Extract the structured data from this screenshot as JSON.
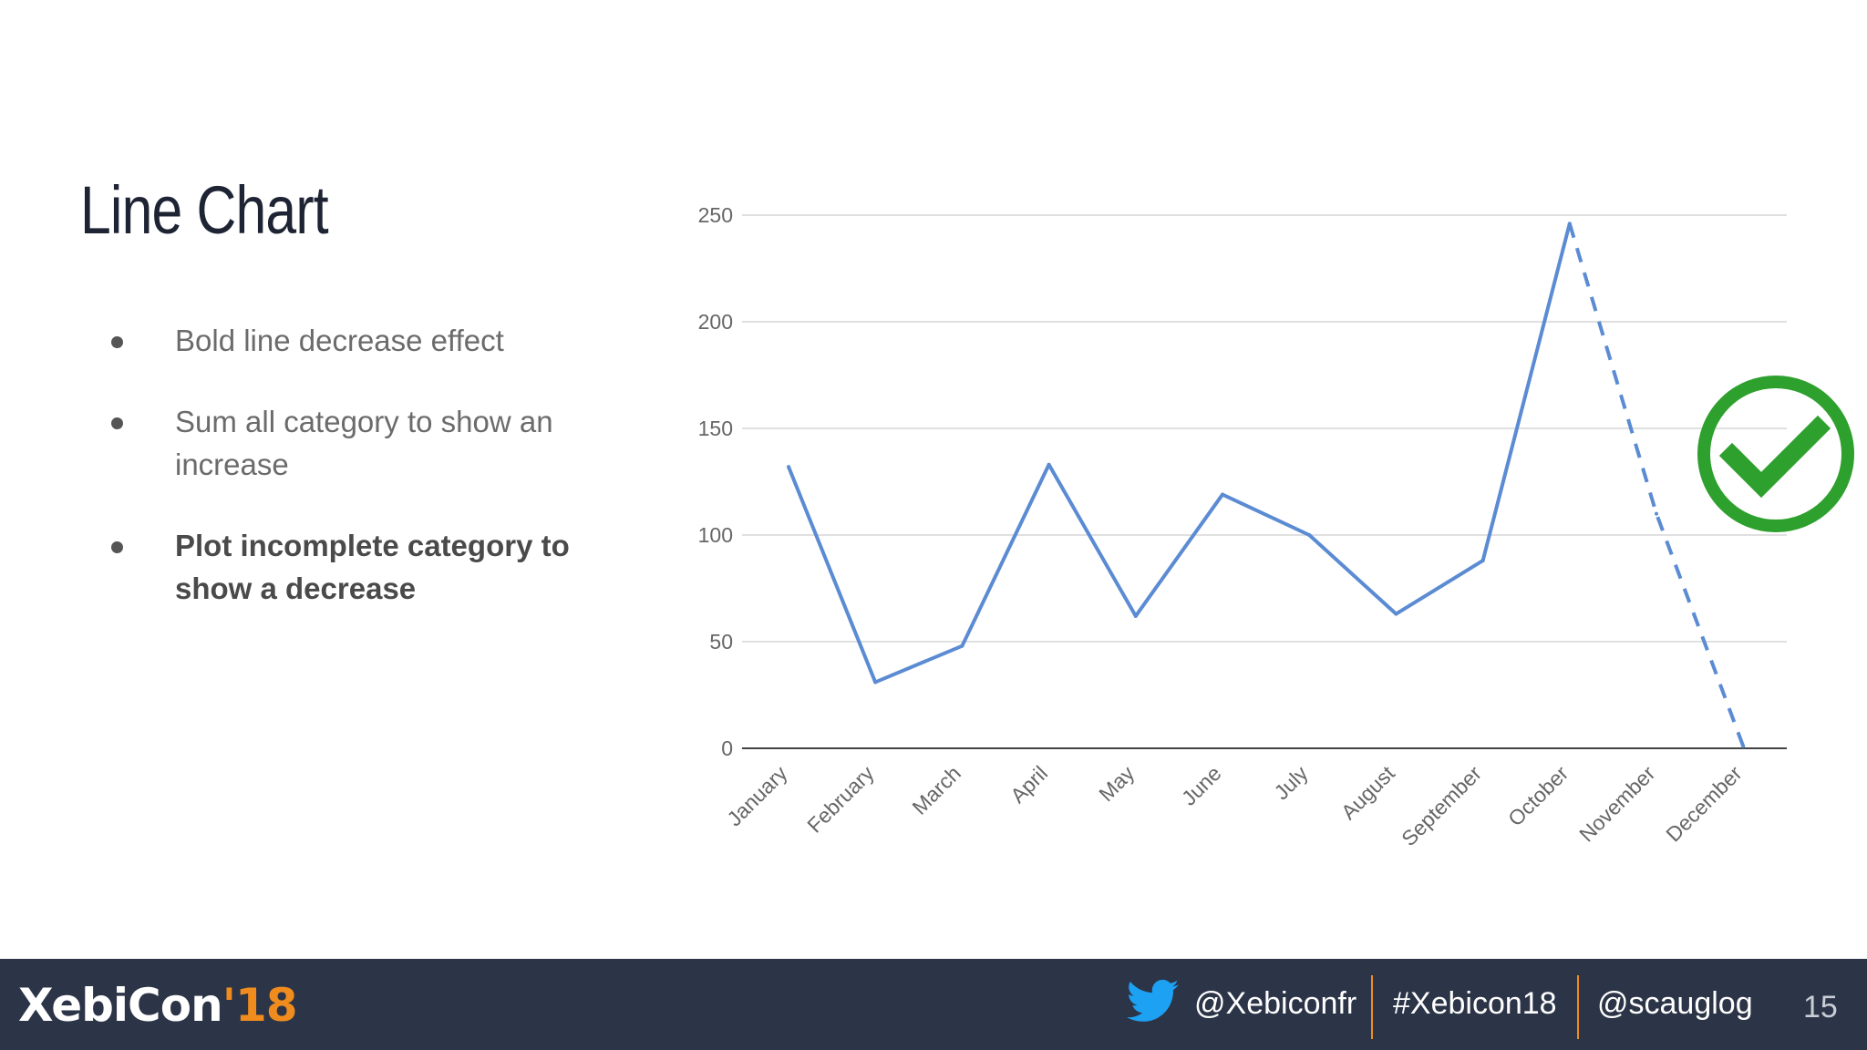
{
  "slide": {
    "title": "Line Chart",
    "bullets": [
      {
        "text": "Bold line decrease effect",
        "bold": false
      },
      {
        "text": "Sum all category to show an increase",
        "bold": false
      },
      {
        "text": "Plot incomplete category to show a decrease",
        "bold": true
      }
    ]
  },
  "footer": {
    "logo_main": "XebiCon",
    "logo_year": "'18",
    "twitter": "@Xebiconfr",
    "hashtag": "#Xebicon18",
    "speaker": "@scauglog",
    "page_number": "15"
  },
  "icons": {
    "twitter": "twitter-bird-icon",
    "check": "check-circle-icon"
  },
  "colors": {
    "line": "#5b8bd3",
    "check": "#2ea02e",
    "footer_bg": "#2c3447",
    "accent": "#f08c1e"
  },
  "chart_data": {
    "type": "line",
    "title": "",
    "xlabel": "",
    "ylabel": "",
    "categories": [
      "January",
      "February",
      "March",
      "April",
      "May",
      "June",
      "July",
      "August",
      "September",
      "October",
      "November",
      "December"
    ],
    "values": [
      132,
      31,
      48,
      133,
      62,
      119,
      100,
      63,
      88,
      246,
      110,
      1
    ],
    "dashed_from_index": 10,
    "ylim": [
      0,
      250
    ],
    "yticks": [
      0,
      50,
      100,
      150,
      200,
      250
    ],
    "grid": true,
    "legend": "none"
  }
}
